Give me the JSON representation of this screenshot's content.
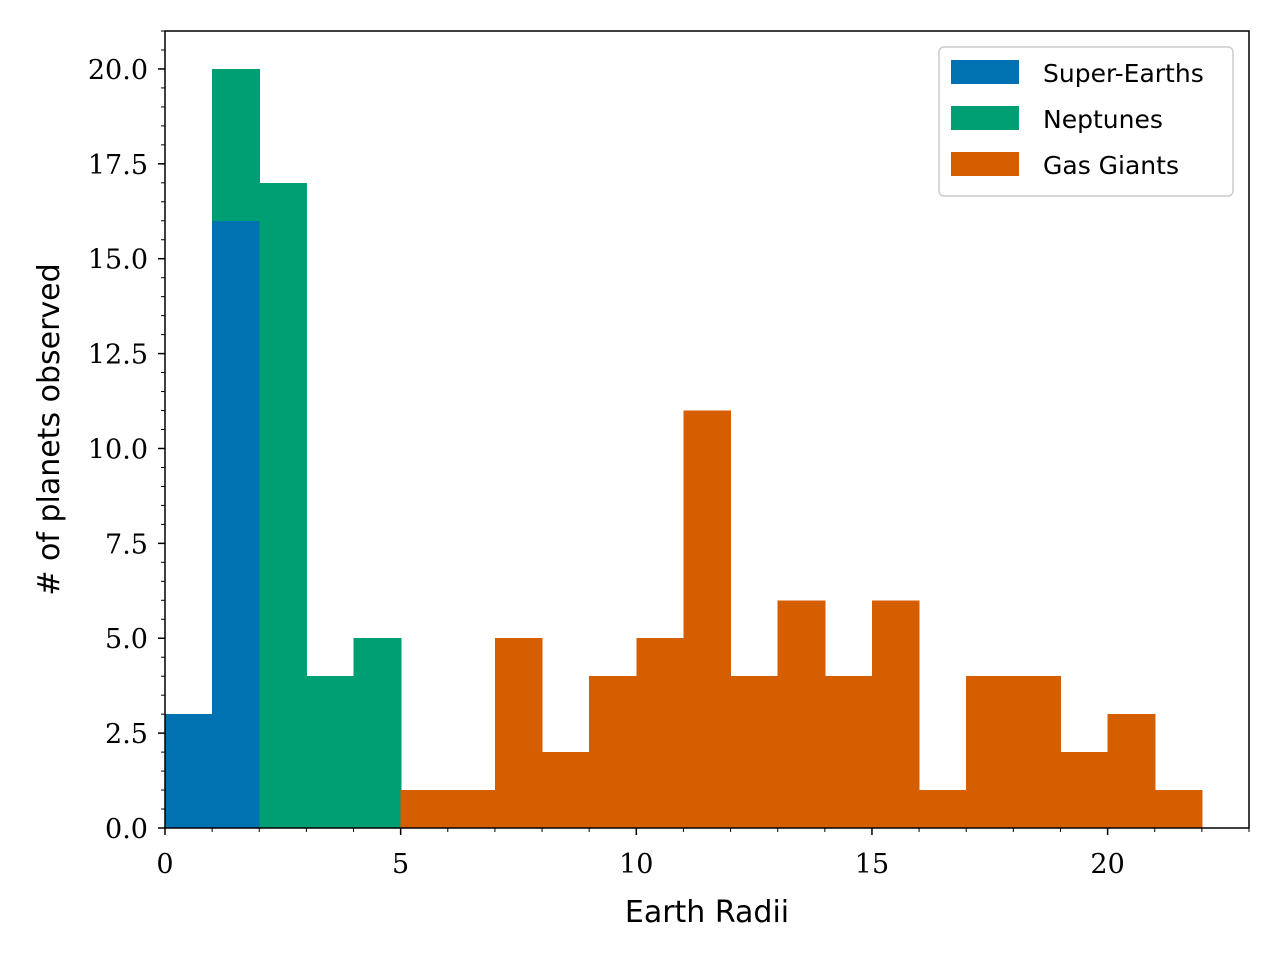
{
  "chart_data": {
    "type": "bar",
    "title": "",
    "xlabel": "Earth Radii",
    "ylabel": "# of planets observed",
    "xlim": [
      0,
      23
    ],
    "ylim": [
      0,
      21
    ],
    "x_ticks": [
      0,
      5,
      10,
      15,
      20
    ],
    "y_ticks": [
      0,
      2.5,
      5,
      7.5,
      10,
      12.5,
      15,
      17.5,
      20
    ],
    "x_tick_labels": [
      "0",
      "5",
      "10",
      "15",
      "20"
    ],
    "y_tick_labels": [
      "0.0",
      "2.5",
      "5.0",
      "7.5",
      "10.0",
      "12.5",
      "15.0",
      "17.5",
      "20.0"
    ],
    "bin_width": 1,
    "stacked": true,
    "grid": false,
    "legend_position": "top-right",
    "series": [
      {
        "name": "Super-Earths",
        "color": "#0072b2",
        "bins": [
          [
            0,
            3
          ],
          [
            1,
            16
          ]
        ]
      },
      {
        "name": "Neptunes",
        "color": "#009e73",
        "bins": [
          [
            1,
            4
          ],
          [
            2,
            17
          ],
          [
            3,
            4
          ],
          [
            4,
            5
          ]
        ]
      },
      {
        "name": "Gas Giants",
        "color": "#d55e00",
        "bins": [
          [
            5,
            1
          ],
          [
            6,
            1
          ],
          [
            7,
            5
          ],
          [
            8,
            2
          ],
          [
            9,
            4
          ],
          [
            10,
            5
          ],
          [
            11,
            11
          ],
          [
            12,
            4
          ],
          [
            13,
            6
          ],
          [
            14,
            4
          ],
          [
            15,
            6
          ],
          [
            16,
            1
          ],
          [
            17,
            4
          ],
          [
            18,
            4
          ],
          [
            19,
            2
          ],
          [
            20,
            3
          ],
          [
            21,
            1
          ]
        ]
      }
    ]
  }
}
